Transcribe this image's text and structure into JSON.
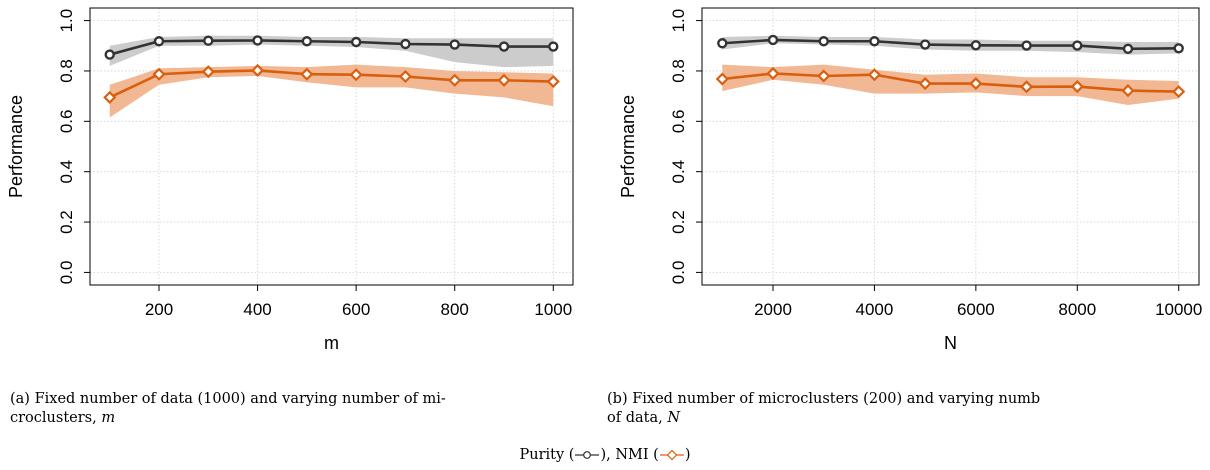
{
  "chart_data": [
    {
      "type": "line",
      "xlabel": "m",
      "ylabel": "Performance",
      "xlim": [
        60,
        1040
      ],
      "ylim": [
        -0.05,
        1.05
      ],
      "xticks": [
        200,
        400,
        600,
        800,
        1000
      ],
      "yticks": [
        0.0,
        0.2,
        0.4,
        0.6,
        0.8,
        1.0
      ],
      "ytick_labels": [
        "0.0",
        "0.2",
        "0.4",
        "0.6",
        "0.8",
        "1.0"
      ],
      "grid": true,
      "x": [
        100,
        200,
        300,
        400,
        500,
        600,
        700,
        800,
        900,
        1000
      ],
      "series": [
        {
          "name": "Purity",
          "color": "#333333",
          "band_color": "#cccccc",
          "marker": "circle",
          "values": [
            0.865,
            0.918,
            0.92,
            0.921,
            0.918,
            0.915,
            0.907,
            0.905,
            0.897,
            0.897
          ],
          "lower": [
            0.82,
            0.9,
            0.9,
            0.905,
            0.9,
            0.895,
            0.88,
            0.835,
            0.815,
            0.82
          ],
          "upper": [
            0.9,
            0.935,
            0.94,
            0.94,
            0.935,
            0.935,
            0.93,
            0.93,
            0.93,
            0.93
          ]
        },
        {
          "name": "NMI",
          "color": "#d95f0e",
          "band_color": "#f2b893",
          "marker": "diamond",
          "values": [
            0.695,
            0.787,
            0.797,
            0.802,
            0.787,
            0.785,
            0.778,
            0.763,
            0.763,
            0.758
          ],
          "lower": [
            0.615,
            0.745,
            0.775,
            0.78,
            0.755,
            0.735,
            0.735,
            0.71,
            0.695,
            0.66
          ],
          "upper": [
            0.745,
            0.81,
            0.815,
            0.82,
            0.815,
            0.825,
            0.815,
            0.8,
            0.795,
            0.79
          ]
        }
      ]
    },
    {
      "type": "line",
      "xlabel": "N",
      "ylabel": "Performance",
      "xlim": [
        600,
        10400
      ],
      "ylim": [
        -0.05,
        1.05
      ],
      "xticks": [
        2000,
        4000,
        6000,
        8000,
        10000
      ],
      "yticks": [
        0.0,
        0.2,
        0.4,
        0.6,
        0.8,
        1.0
      ],
      "ytick_labels": [
        "0.0",
        "0.2",
        "0.4",
        "0.6",
        "0.8",
        "1.0"
      ],
      "grid": true,
      "x": [
        1000,
        2000,
        3000,
        4000,
        5000,
        6000,
        7000,
        8000,
        9000,
        10000
      ],
      "series": [
        {
          "name": "Purity",
          "color": "#333333",
          "band_color": "#cccccc",
          "marker": "circle",
          "values": [
            0.91,
            0.923,
            0.918,
            0.918,
            0.905,
            0.902,
            0.901,
            0.901,
            0.888,
            0.89
          ],
          "lower": [
            0.885,
            0.91,
            0.905,
            0.9,
            0.885,
            0.88,
            0.88,
            0.875,
            0.865,
            0.87
          ],
          "upper": [
            0.935,
            0.94,
            0.935,
            0.935,
            0.925,
            0.925,
            0.92,
            0.92,
            0.915,
            0.915
          ]
        },
        {
          "name": "NMI",
          "color": "#d95f0e",
          "band_color": "#f2b893",
          "marker": "diamond",
          "values": [
            0.768,
            0.79,
            0.78,
            0.785,
            0.75,
            0.75,
            0.737,
            0.738,
            0.722,
            0.718
          ],
          "lower": [
            0.72,
            0.765,
            0.745,
            0.71,
            0.71,
            0.715,
            0.7,
            0.7,
            0.665,
            0.69
          ],
          "upper": [
            0.825,
            0.815,
            0.825,
            0.805,
            0.785,
            0.79,
            0.775,
            0.775,
            0.765,
            0.76
          ]
        }
      ]
    }
  ],
  "captions": {
    "a_line1": "(a) Fixed number of data (1000) and varying number of mi-",
    "a_line2_prefix": "croclusters, ",
    "a_var": "m",
    "b_line1": "(b) Fixed number of microclusters (200) and varying numb",
    "b_line2_prefix": "of data, ",
    "b_var": "N"
  },
  "legend": {
    "purity_label": "Purity (",
    "nmi_label": "), NMI (",
    "close": ")"
  }
}
